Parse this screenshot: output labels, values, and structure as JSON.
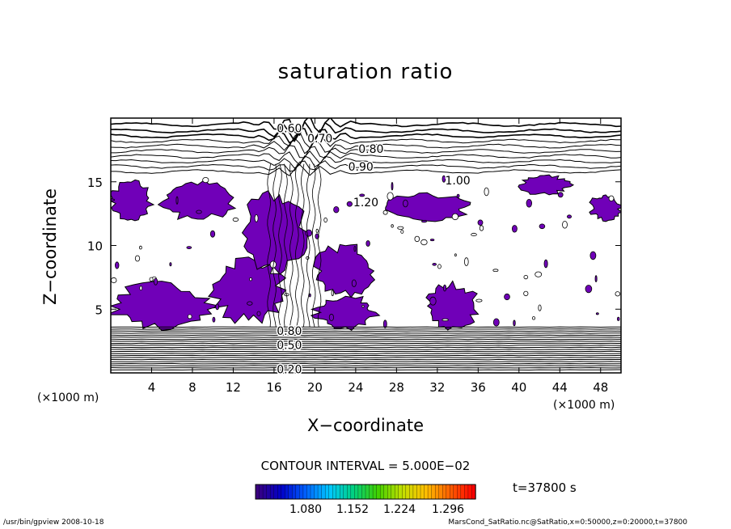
{
  "chart_data": {
    "type": "heatmap",
    "title": "saturation ratio",
    "xlabel": "X−coordinate",
    "ylabel": "Z−coordinate",
    "x_unit": "(×1000 m)",
    "y_unit": "(×1000 m)",
    "xlim": [
      0,
      50
    ],
    "ylim": [
      0,
      20
    ],
    "x_ticks": [
      4,
      8,
      12,
      16,
      20,
      24,
      28,
      32,
      36,
      40,
      44,
      48
    ],
    "y_ticks": [
      5,
      10,
      15
    ],
    "contour_labels": [
      {
        "text": "0.60",
        "x": 17.5,
        "z": 19.2
      },
      {
        "text": "0.70",
        "x": 20.5,
        "z": 18.4
      },
      {
        "text": "0.80",
        "x": 25.5,
        "z": 17.6
      },
      {
        "text": "0.90",
        "x": 24.5,
        "z": 16.2
      },
      {
        "text": "1.00",
        "x": 34.0,
        "z": 15.1
      },
      {
        "text": "1.20",
        "x": 25.0,
        "z": 13.4
      },
      {
        "text": "0.80",
        "x": 17.5,
        "z": 3.3
      },
      {
        "text": "0.50",
        "x": 17.5,
        "z": 2.2
      },
      {
        "text": "0.20",
        "x": 17.5,
        "z": 0.3
      }
    ],
    "supersaturated_regions": [
      {
        "x": [
          0,
          4
        ],
        "z": [
          12,
          15
        ]
      },
      {
        "x": [
          5,
          12
        ],
        "z": [
          12,
          15
        ]
      },
      {
        "x": [
          0,
          10
        ],
        "z": [
          3.5,
          7
        ]
      },
      {
        "x": [
          10,
          17
        ],
        "z": [
          4,
          9
        ]
      },
      {
        "x": [
          13,
          19
        ],
        "z": [
          8,
          14
        ]
      },
      {
        "x": [
          20,
          26
        ],
        "z": [
          6,
          10
        ]
      },
      {
        "x": [
          20,
          26
        ],
        "z": [
          3.5,
          6
        ]
      },
      {
        "x": [
          27,
          35
        ],
        "z": [
          12,
          14
        ]
      },
      {
        "x": [
          31,
          36
        ],
        "z": [
          3.5,
          7
        ]
      },
      {
        "x": [
          40,
          45
        ],
        "z": [
          14,
          15.5
        ]
      },
      {
        "x": [
          47,
          50
        ],
        "z": [
          12,
          14
        ]
      }
    ],
    "colorbar": {
      "ticks": [
        "1.080",
        "1.152",
        "1.224",
        "1.296"
      ],
      "colors": [
        "#3a0080",
        "#0000c8",
        "#0060ff",
        "#00c8ff",
        "#00d080",
        "#40d000",
        "#c0e000",
        "#ffc000",
        "#ff6000",
        "#ff0000"
      ]
    },
    "fill_color": "#7000b8",
    "contour_interval": "CONTOUR INTERVAL = 5.000E−02",
    "time": "t=37800 s"
  },
  "footer": {
    "left": "/usr/bin/gpview   2008-10-18",
    "right": "MarsCond_SatRatio.nc@SatRatio,x=0:50000,z=0:20000,t=37800"
  }
}
